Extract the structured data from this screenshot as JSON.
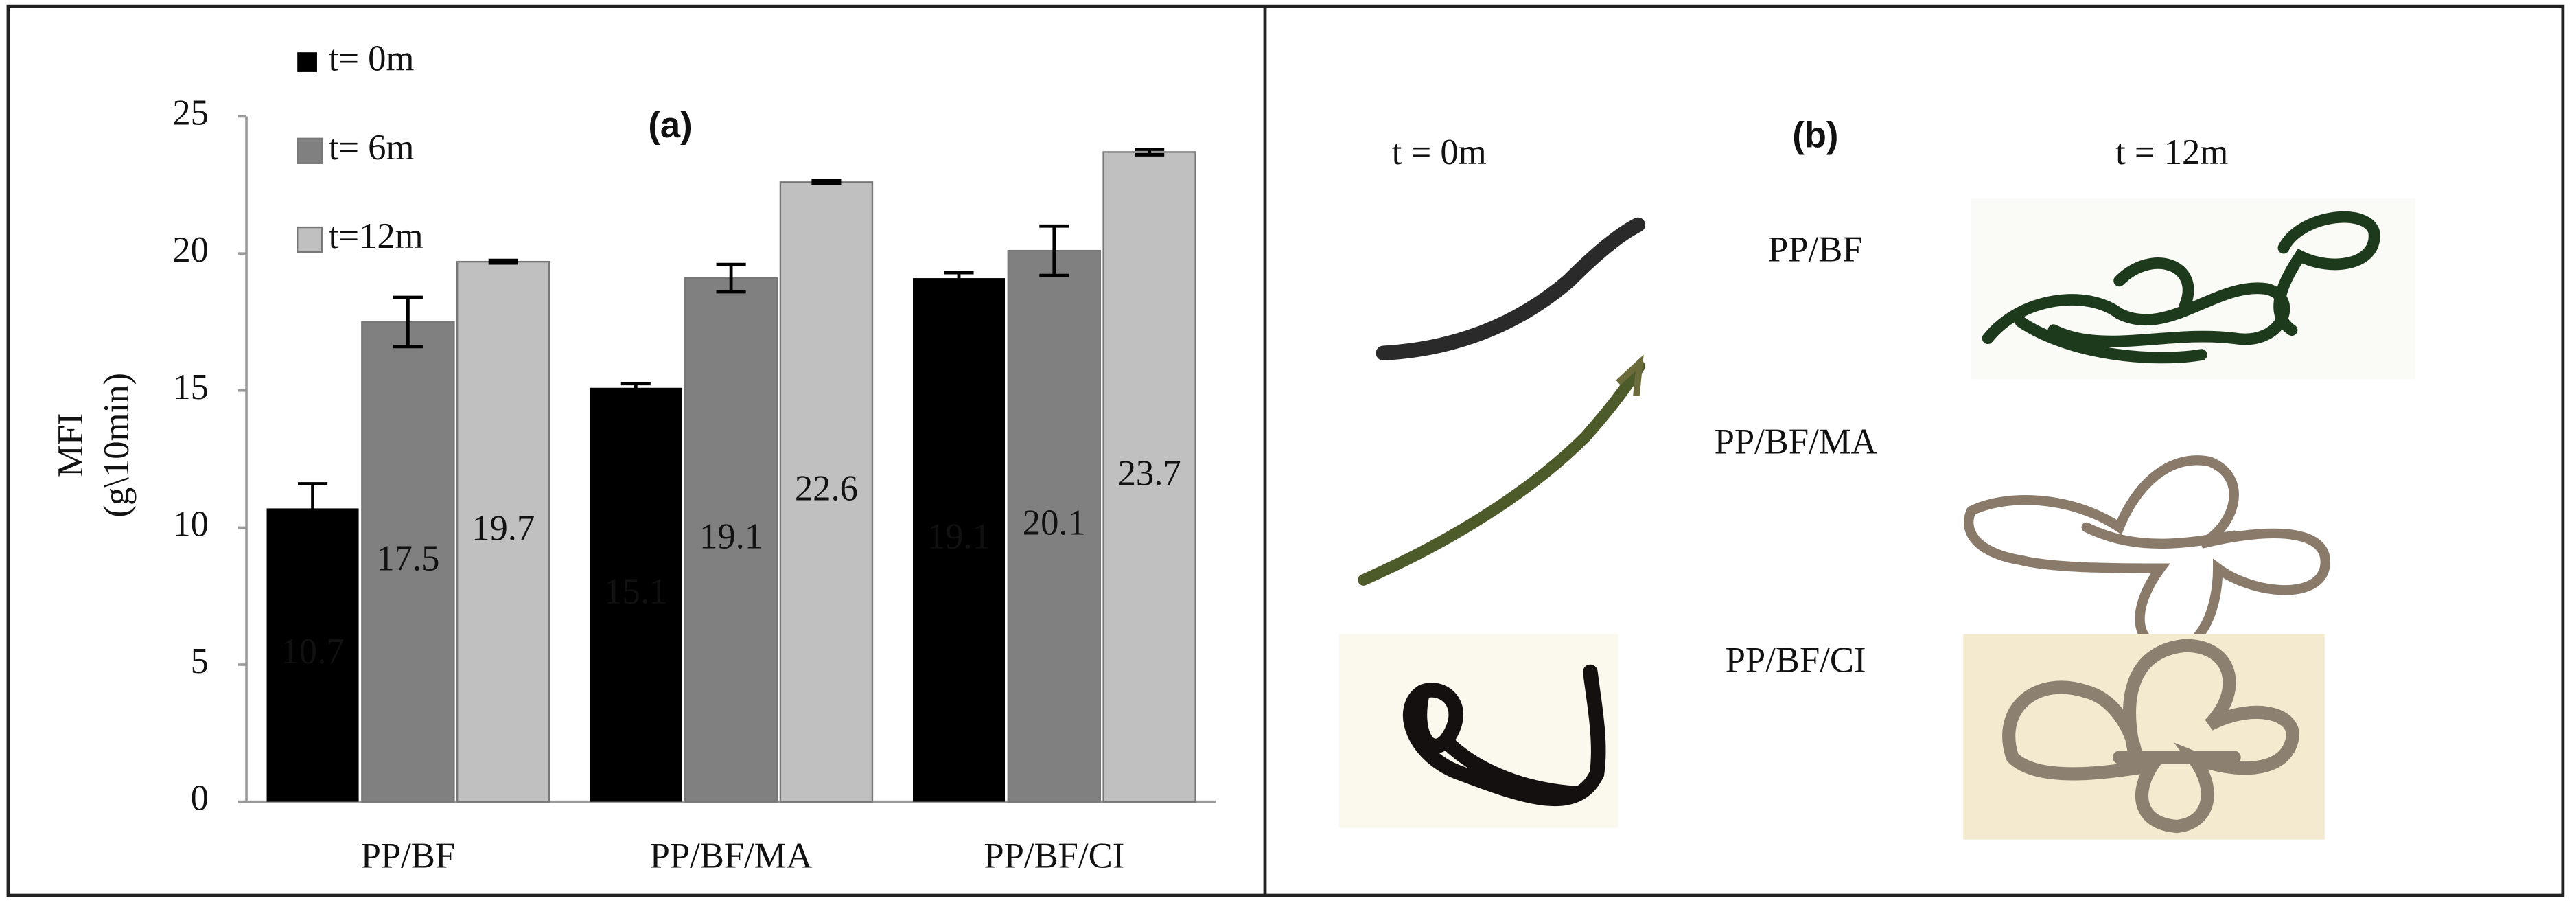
{
  "chart_data": {
    "type": "bar",
    "title": "(a)",
    "y_label": [
      "MFI",
      "(g\\10min)"
    ],
    "categories": [
      "PP/BF",
      "PP/BF/MA",
      "PP/BF/CI"
    ],
    "series": [
      {
        "name": "t= 0m",
        "color": "#000000",
        "label_color": "#ffffff",
        "values": [
          10.7,
          15.1,
          19.1
        ],
        "errors": [
          0.9,
          0.15,
          0.2
        ]
      },
      {
        "name": "t= 6m",
        "color": "#808080",
        "label_color": "#111111",
        "values": [
          17.5,
          19.1,
          20.1
        ],
        "errors": [
          0.9,
          0.5,
          0.9
        ]
      },
      {
        "name": "t=12m",
        "color": "#c0c0c0",
        "label_color": "#111111",
        "values": [
          19.7,
          22.6,
          23.7
        ],
        "errors": [
          0.05,
          0.05,
          0.1
        ]
      }
    ],
    "ylim": [
      0,
      25
    ],
    "yticks": [
      0,
      5,
      10,
      15,
      20,
      25
    ],
    "grid": false,
    "legend": "top-left"
  },
  "panel_b": {
    "title": "(b)",
    "columns": [
      "t = 0m",
      "t = 12m"
    ],
    "rows": [
      "PP/BF",
      "PP/BF/MA",
      "PP/BF/CI"
    ]
  }
}
